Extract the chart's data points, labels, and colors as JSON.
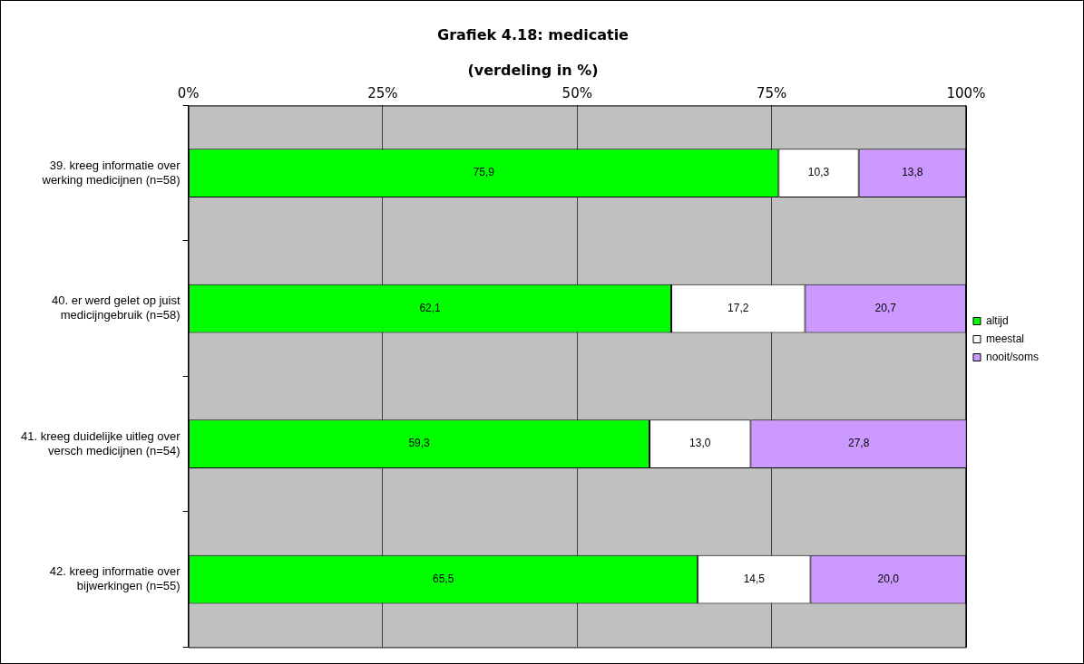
{
  "chart_data": {
    "type": "bar",
    "orientation": "horizontal",
    "stacked": true,
    "title": "Grafiek 4.18: medicatie",
    "subtitle": "(verdeling in %)",
    "categories": [
      "39. kreeg informatie over werking medicijnen (n=58)",
      "40. er werd gelet op juist medicijngebruik (n=58)",
      "41. kreeg duidelijke uitleg over versch medicijnen (n=54)",
      "42. kreeg informatie over bijwerkingen (n=55)"
    ],
    "series": [
      {
        "name": "altijd",
        "color": "#00ff00",
        "values": [
          75.9,
          62.1,
          59.3,
          65.5
        ],
        "value_labels": [
          "75,9",
          "62,1",
          "59,3",
          "65,5"
        ]
      },
      {
        "name": "meestal",
        "color": "#ffffff",
        "values": [
          10.3,
          17.2,
          13.0,
          14.5
        ],
        "value_labels": [
          "10,3",
          "17,2",
          "13,0",
          "14,5"
        ]
      },
      {
        "name": "nooit/soms",
        "color": "#cc99ff",
        "values": [
          13.8,
          20.7,
          27.8,
          20.0
        ],
        "value_labels": [
          "13,8",
          "20,7",
          "27,8",
          "20,0"
        ]
      }
    ],
    "xlim": [
      0,
      100
    ],
    "xticks": [
      {
        "value": 0,
        "label": "0%"
      },
      {
        "value": 25,
        "label": "25%"
      },
      {
        "value": 50,
        "label": "50%"
      },
      {
        "value": 75,
        "label": "75%"
      },
      {
        "value": 100,
        "label": "100%"
      }
    ],
    "grid": "x",
    "legend": "right"
  }
}
